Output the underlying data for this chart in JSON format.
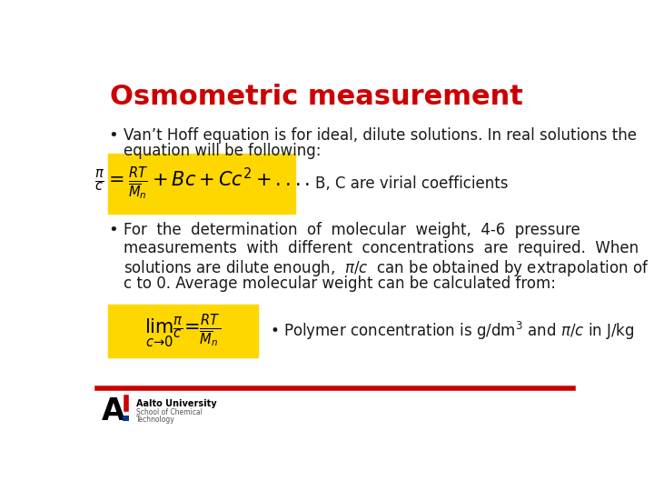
{
  "title": "Osmometric measurement",
  "title_color": "#CC0000",
  "title_fontsize": 22,
  "bg_color": "#FFFFFF",
  "bullet1_text1": "Van’t Hoff equation is for ideal, dilute solutions. In real solutions the",
  "bullet1_text2": "equation will be following:",
  "eq1_note": "B, C are virial coefficients",
  "yellow_bg": "#FFD700",
  "red_line_color": "#CC0000",
  "text_color": "#1A1A1A",
  "footer_line1": "Aalto University",
  "footer_line2": "School of Chemical",
  "footer_line3": "Technology",
  "body_fontsize": 12,
  "bullet2_lines": [
    "For  the  determination  of  molecular  weight,  4-6  pressure",
    "measurements  with  different  concentrations  are  required.  When",
    "solutions are dilute enough,  $\\pi/c$  can be obtained by extrapolation of",
    "c to 0. Average molecular weight can be calculated from:"
  ]
}
